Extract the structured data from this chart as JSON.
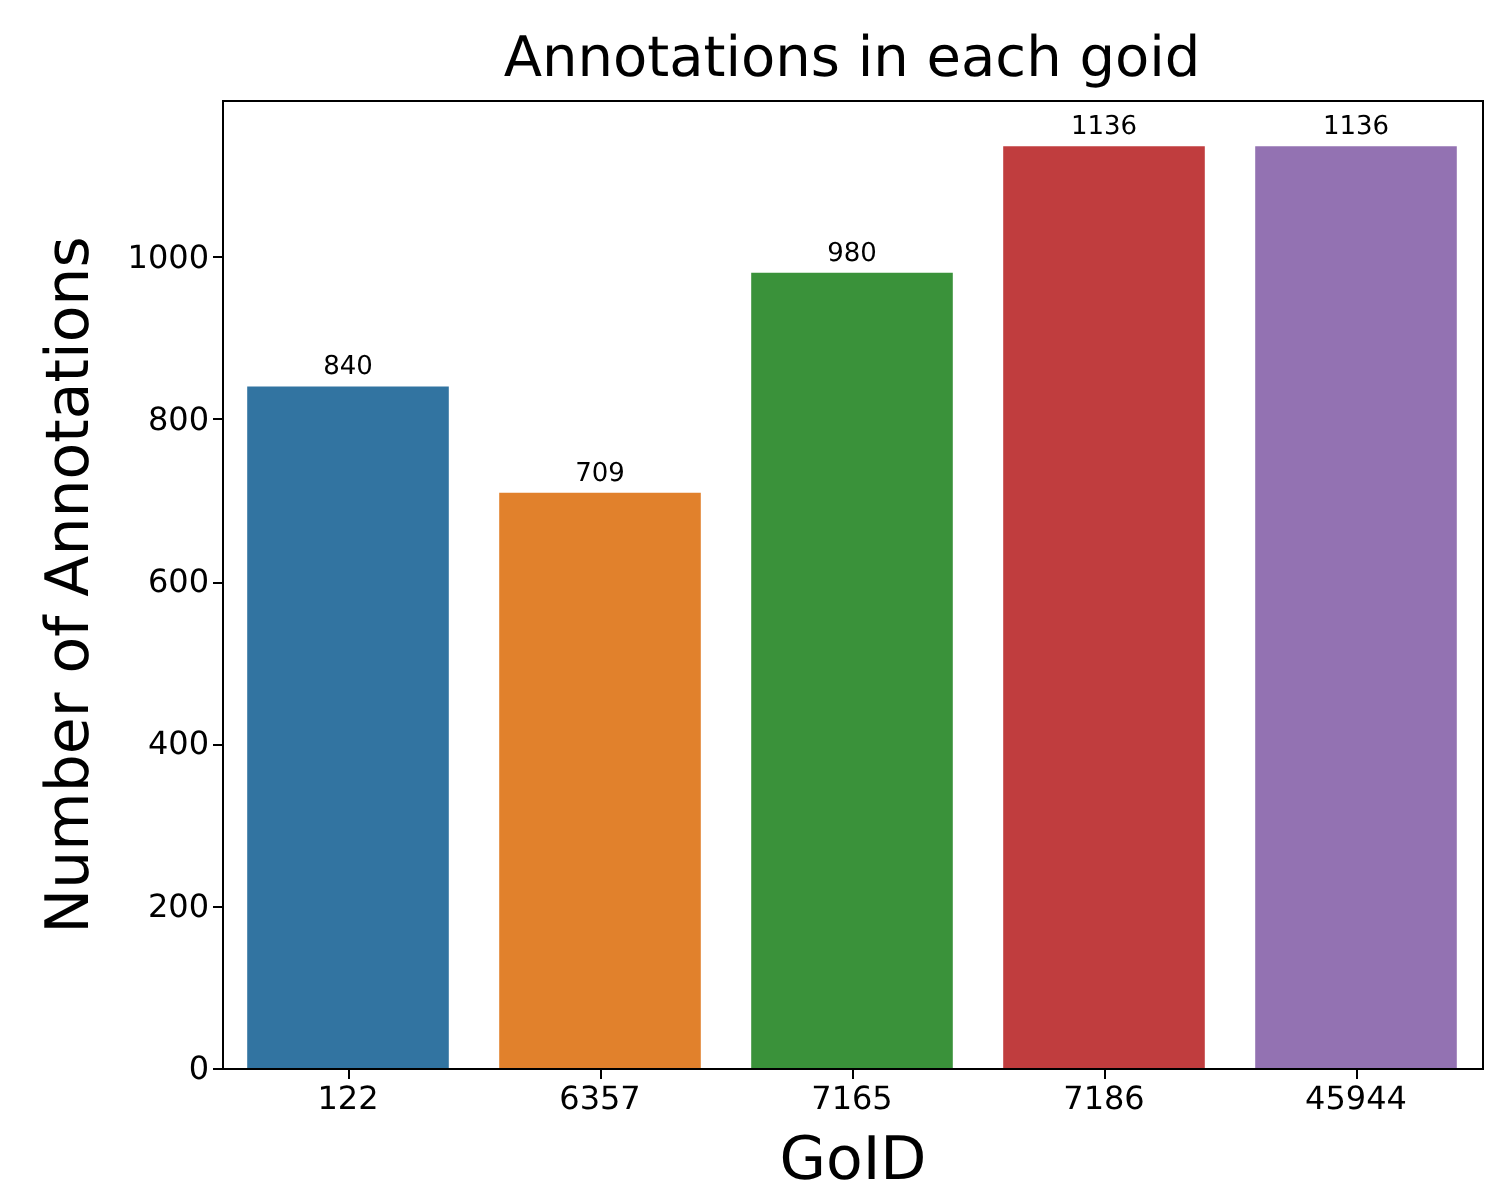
{
  "chart_data": {
    "type": "bar",
    "title": "Annotations in each goid",
    "xlabel": "GoID",
    "ylabel": "Number of Annotations",
    "categories": [
      "122",
      "6357",
      "7165",
      "7186",
      "45944"
    ],
    "values": [
      840,
      709,
      980,
      1136,
      1136
    ],
    "colors": [
      "#3274a1",
      "#e1812c",
      "#3a923a",
      "#c03d3e",
      "#9372b2"
    ],
    "ylim": [
      0,
      1193
    ],
    "yticks": [
      0,
      200,
      400,
      600,
      800,
      1000
    ],
    "grid": false,
    "data_labels": true
  }
}
